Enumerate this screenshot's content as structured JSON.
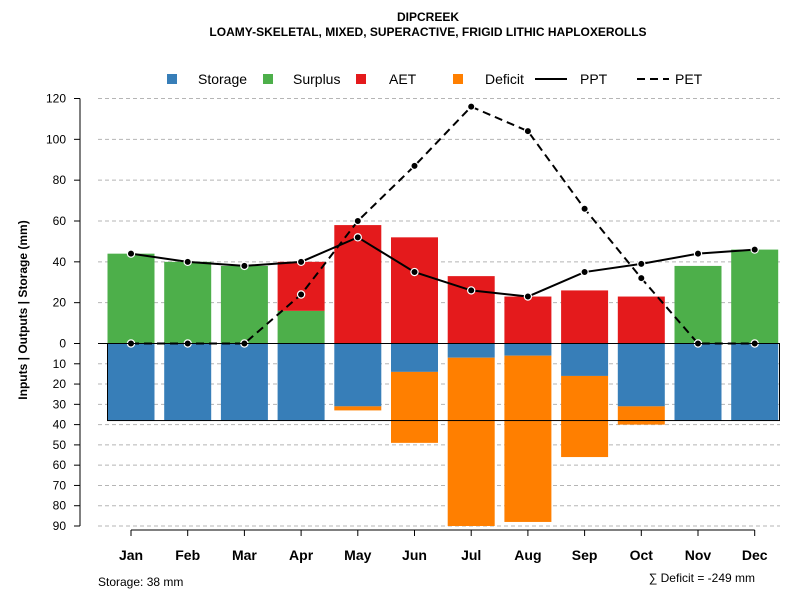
{
  "chart_data": {
    "type": "bar",
    "title": "DIPCREEK",
    "subtitle": "LOAMY-SKELETAL, MIXED, SUPERACTIVE, FRIGID LITHIC HAPLOXEROLLS",
    "ylabel": "Inputs | Outputs | Storage    (mm)",
    "categories": [
      "Jan",
      "Feb",
      "Mar",
      "Apr",
      "May",
      "Jun",
      "Jul",
      "Aug",
      "Sep",
      "Oct",
      "Nov",
      "Dec"
    ],
    "upper_ticks": [
      "0",
      "20",
      "40",
      "60",
      "80",
      "100",
      "120"
    ],
    "lower_ticks": [
      "10",
      "20",
      "30",
      "40",
      "50",
      "60",
      "70",
      "80",
      "90"
    ],
    "upper_ylim": [
      0,
      120
    ],
    "lower_ylim": [
      0,
      90
    ],
    "series_upper": [
      {
        "name": "Surplus",
        "color": "#4DAF4A",
        "values": [
          44,
          40,
          38,
          16,
          0,
          0,
          0,
          0,
          0,
          0,
          38,
          46
        ]
      },
      {
        "name": "AET",
        "color": "#E41A1C",
        "values": [
          0,
          0,
          0,
          24,
          58,
          52,
          33,
          23,
          26,
          23,
          0,
          0
        ]
      }
    ],
    "series_lower": [
      {
        "name": "Storage",
        "color": "#377EB8",
        "values": [
          38,
          38,
          38,
          38,
          31,
          14,
          7,
          6,
          16,
          31,
          38,
          38
        ]
      },
      {
        "name": "Deficit",
        "color": "#FF7F00",
        "values": [
          0,
          0,
          0,
          0,
          2,
          35,
          83,
          82,
          40,
          9,
          0,
          0
        ]
      }
    ],
    "lines": [
      {
        "name": "PPT",
        "style": "solid",
        "values": [
          44,
          40,
          38,
          40,
          52,
          35,
          26,
          23,
          35,
          39,
          44,
          46
        ]
      },
      {
        "name": "PET",
        "style": "dashed",
        "values": [
          0,
          0,
          0,
          24,
          60,
          87,
          116,
          104,
          66,
          32,
          0,
          0
        ]
      }
    ],
    "storage_capacity": 38,
    "legend": [
      "Storage",
      "Surplus",
      "AET",
      "Deficit",
      "PPT",
      "PET"
    ],
    "legend_position": "top",
    "grid": true
  },
  "footer": {
    "storage_note": "Storage: 38 mm",
    "deficit_note": "∑ Deficit = -249 mm"
  }
}
